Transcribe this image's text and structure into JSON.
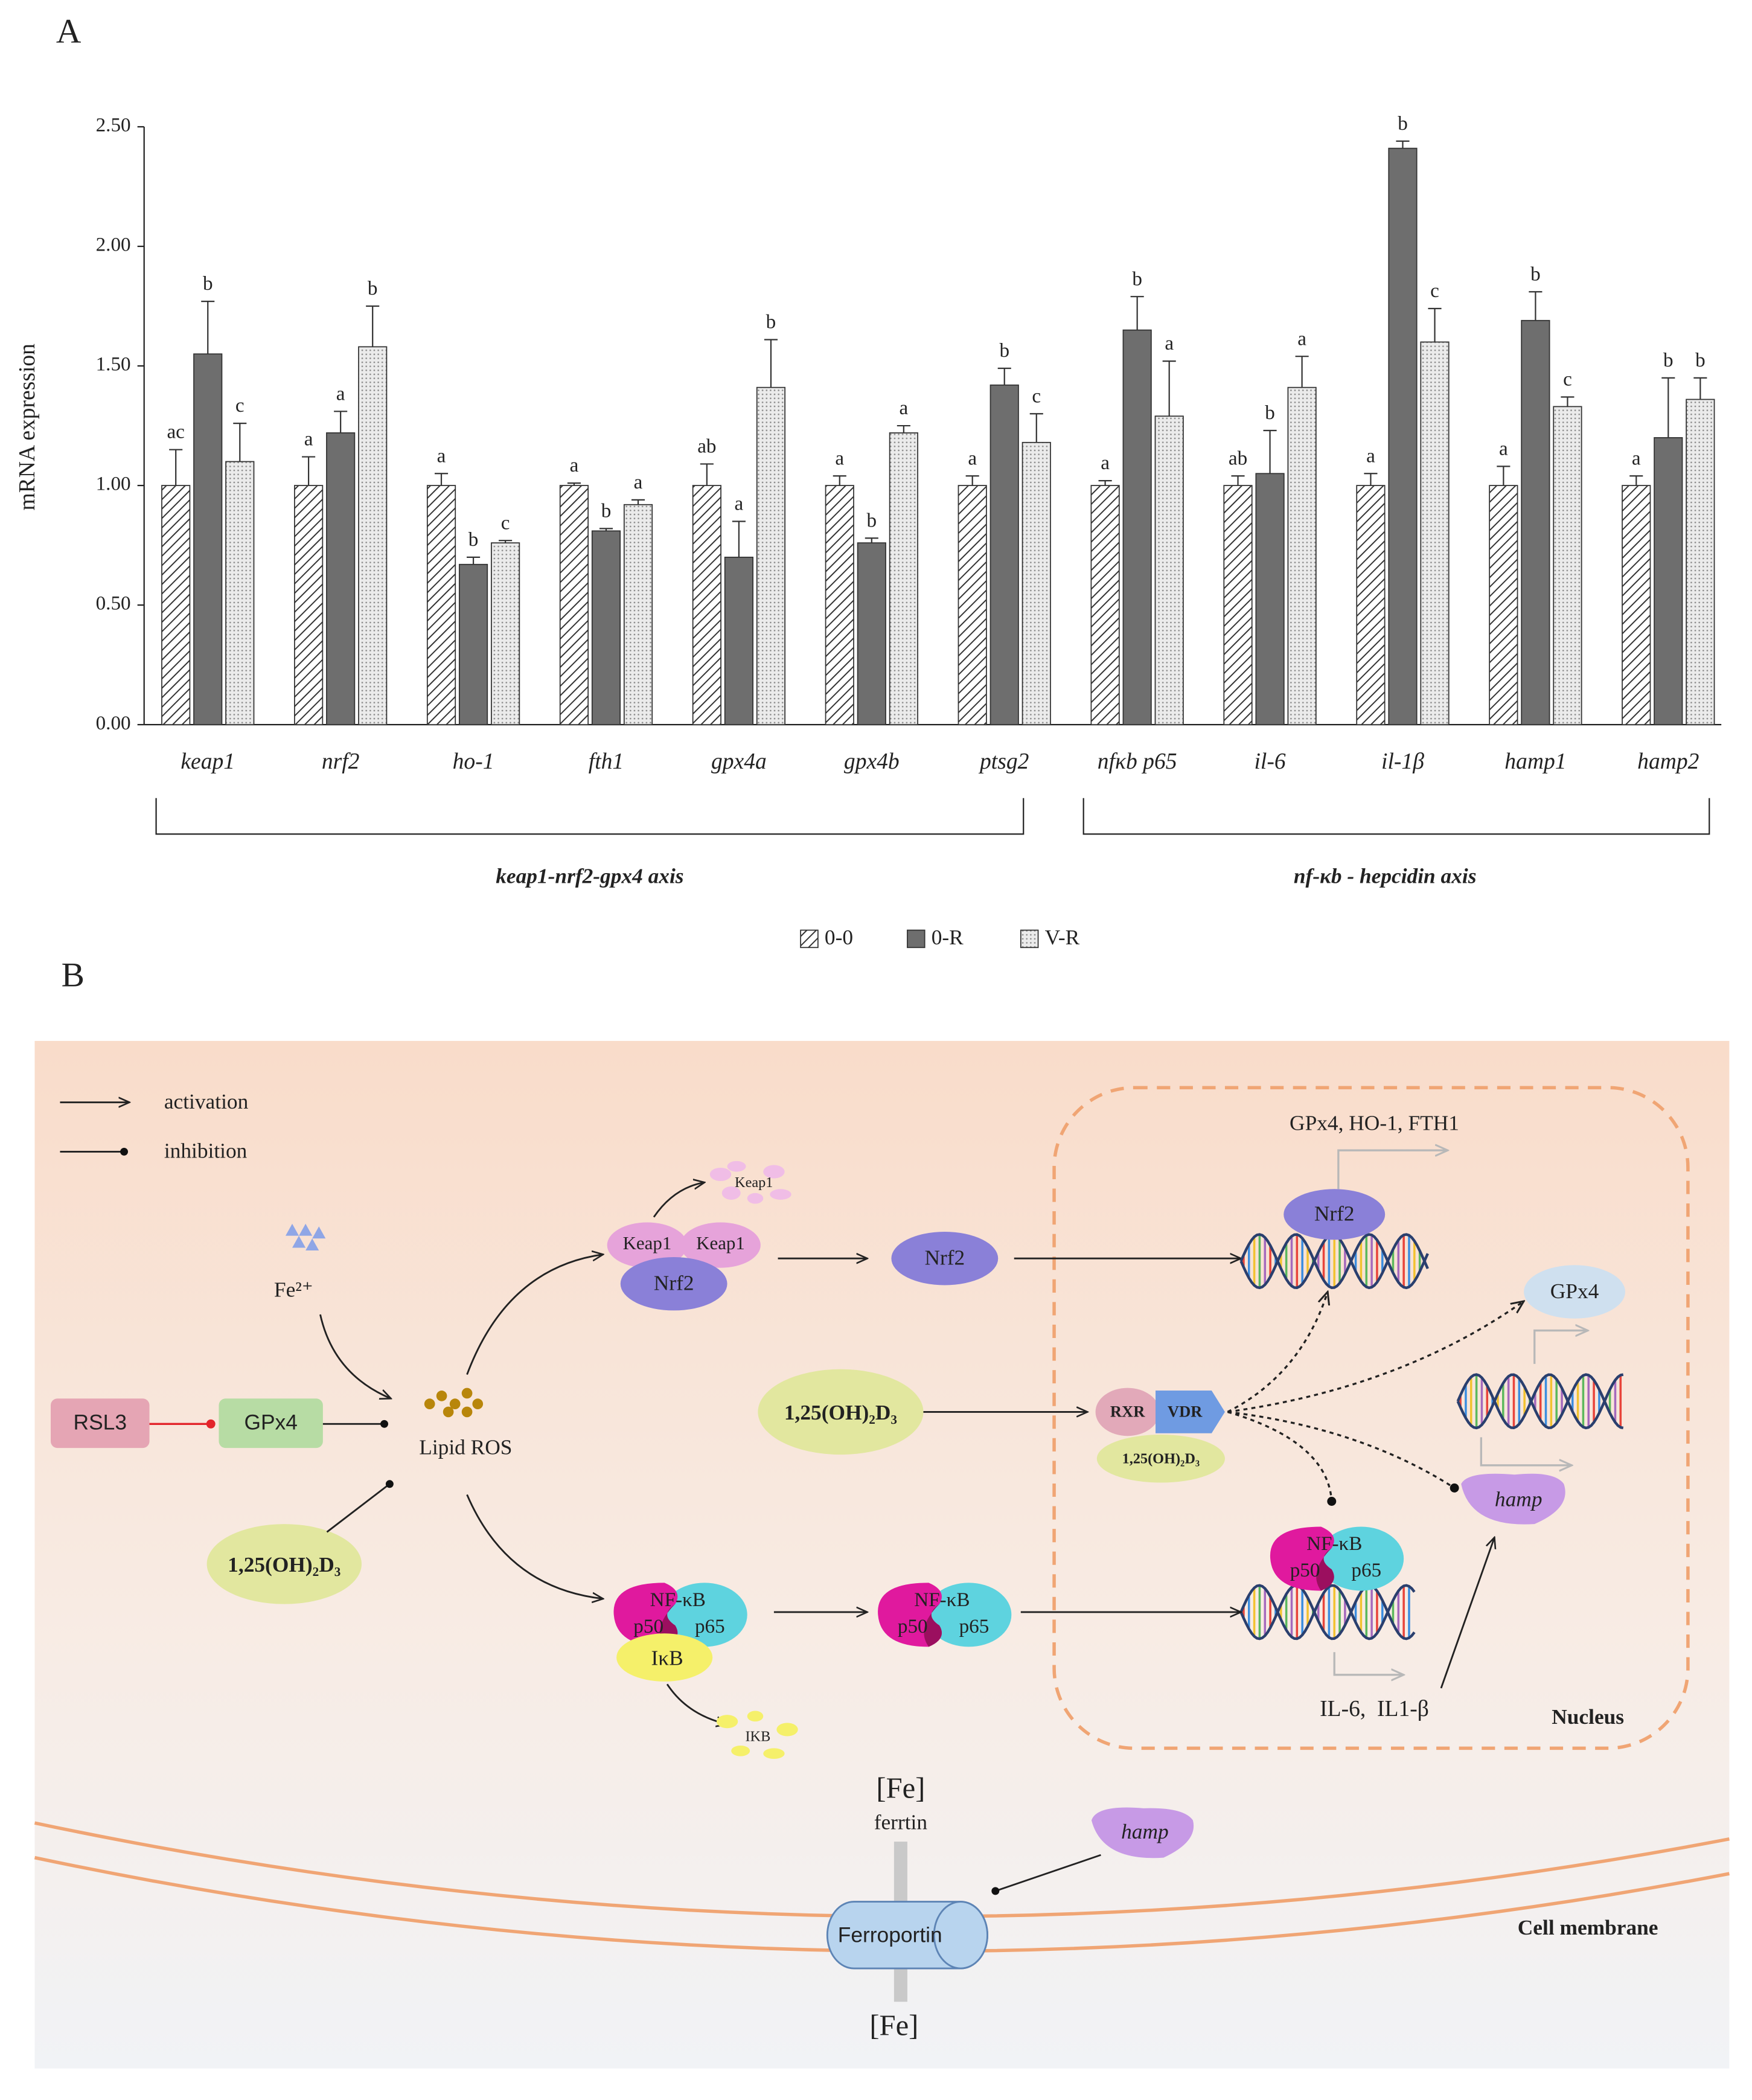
{
  "panels": [
    "A",
    "B"
  ],
  "chart_data": {
    "type": "bar",
    "y_label": "mRNA expression",
    "categories": [
      "keap1",
      "nrf2",
      "ho-1",
      "fth1",
      "gpx4a",
      "gpx4b",
      "ptsg2",
      "nfκb p65",
      "il-6",
      "il-1β",
      "hamp1",
      "hamp2"
    ],
    "groups": [
      "keap1-nrf2-gpx4 axis",
      "nf-κb - hepcidin axis"
    ],
    "series": [
      {
        "name": "0-0",
        "pattern": "hatch",
        "color": "#333333",
        "values": [
          1.0,
          1.0,
          1.0,
          1.0,
          1.0,
          1.0,
          1.0,
          1.0,
          1.0,
          1.0,
          1.0,
          1.0
        ],
        "errors": [
          0.15,
          0.12,
          0.05,
          0.01,
          0.09,
          0.04,
          0.04,
          0.02,
          0.04,
          0.05,
          0.08,
          0.04
        ],
        "significance": [
          "ac",
          "a",
          "a",
          "a",
          "ab",
          "a",
          "a",
          "a",
          "ab",
          "a",
          "a",
          "a"
        ]
      },
      {
        "name": "0-R",
        "pattern": "solid",
        "color": "#6e6e6e",
        "values": [
          1.55,
          1.22,
          0.67,
          0.81,
          0.7,
          0.76,
          1.42,
          1.65,
          1.05,
          2.41,
          1.69,
          1.2
        ],
        "errors": [
          0.22,
          0.09,
          0.03,
          0.01,
          0.15,
          0.02,
          0.07,
          0.14,
          0.18,
          0.03,
          0.12,
          0.25
        ],
        "significance": [
          "b",
          "a",
          "b",
          "b",
          "a",
          "b",
          "b",
          "b",
          "b",
          "b",
          "b",
          "b"
        ]
      },
      {
        "name": "V-R",
        "pattern": "dots",
        "color": "#ebebeb",
        "values": [
          1.1,
          1.58,
          0.76,
          0.92,
          1.41,
          1.22,
          1.18,
          1.29,
          1.41,
          1.6,
          1.33,
          1.36
        ],
        "errors": [
          0.16,
          0.17,
          0.01,
          0.02,
          0.2,
          0.03,
          0.12,
          0.23,
          0.13,
          0.14,
          0.04,
          0.09
        ],
        "significance": [
          "c",
          "b",
          "c",
          "a",
          "b",
          "a",
          "c",
          "a",
          "a",
          "c",
          "c",
          "b"
        ]
      }
    ],
    "ylim": [
      0,
      2.5
    ],
    "yticks": [
      {
        "value": 0,
        "label": "0.00"
      },
      {
        "value": 0.5,
        "label": "0.50"
      },
      {
        "value": 1,
        "label": "1.00"
      },
      {
        "value": 1.5,
        "label": "1.50"
      },
      {
        "value": 2,
        "label": "2.00"
      },
      {
        "value": 2.5,
        "label": "2.50"
      }
    ],
    "grid": false
  },
  "diagram": {
    "legend": [
      "activation",
      "inhibition"
    ],
    "fe": "Fe²⁺",
    "rsl3": "RSL3",
    "gpx4": "GPx4",
    "lipid_ros": "Lipid ROS",
    "vitd": "1,25(OH)₂D₃",
    "keap1": "Keap1",
    "nrf2": "Nrf2",
    "targets": "GPx4, HO-1, FTH1",
    "rxr": "RXR",
    "vdr": "VDR",
    "hamp": "hamp",
    "nfkb": "NF-κB",
    "p50": "p50",
    "p65": "p65",
    "ikb": "IκB",
    "ikb_fragment": "IKB",
    "cytokines": "IL-6,  IL1-β",
    "nucleus": "Nucleus",
    "fe_pool": "[Fe]",
    "ferritin": "ferrtin",
    "ferroportin": "Ferroportin",
    "membrane": "Cell membrane"
  }
}
